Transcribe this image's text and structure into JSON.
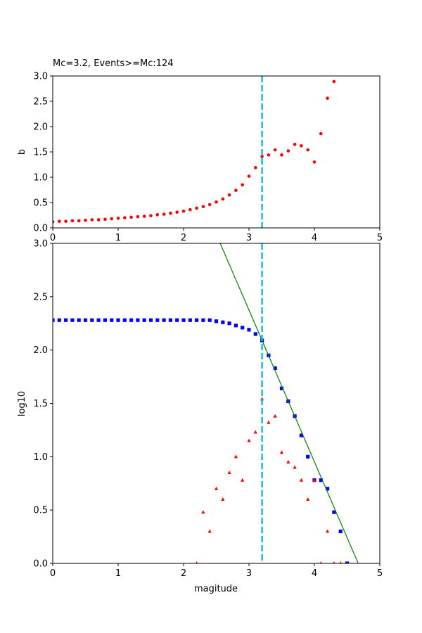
{
  "figure": {
    "title": "Mc=3.2, Events>=Mc:124"
  },
  "colors": {
    "b_points": "#ff0000",
    "cumulative": "#0000ff",
    "noncumulative": "#ff0000",
    "fit_line": "#008000",
    "mc_line": "#17becf"
  },
  "chart_data": [
    {
      "type": "scatter",
      "panel": "top",
      "title": "Mc=3.2, Events>=Mc:124",
      "xlabel": "",
      "ylabel": "b",
      "xlim": [
        0,
        5
      ],
      "ylim": [
        0,
        3
      ],
      "xticks": [
        "0",
        "1",
        "2",
        "3",
        "4",
        "5"
      ],
      "yticks": [
        "0.0",
        "0.5",
        "1.0",
        "1.5",
        "2.0",
        "2.5",
        "3.0"
      ],
      "mc": 3.2,
      "series": [
        {
          "marker": "circle",
          "x": [
            0.0,
            0.1,
            0.2,
            0.3,
            0.4,
            0.5,
            0.6,
            0.7,
            0.8,
            0.9,
            1.0,
            1.1,
            1.2,
            1.3,
            1.4,
            1.5,
            1.6,
            1.7,
            1.8,
            1.9,
            2.0,
            2.1,
            2.2,
            2.3,
            2.4,
            2.5,
            2.6,
            2.7,
            2.8,
            2.9,
            3.0,
            3.1,
            3.2,
            3.3,
            3.4,
            3.5,
            3.6,
            3.7,
            3.8,
            3.9,
            4.0,
            4.1,
            4.2,
            4.3
          ],
          "y": [
            0.12,
            0.13,
            0.13,
            0.14,
            0.14,
            0.15,
            0.16,
            0.16,
            0.17,
            0.18,
            0.19,
            0.2,
            0.21,
            0.22,
            0.23,
            0.24,
            0.26,
            0.27,
            0.29,
            0.31,
            0.33,
            0.36,
            0.39,
            0.42,
            0.46,
            0.51,
            0.57,
            0.65,
            0.74,
            0.85,
            1.02,
            1.19,
            1.41,
            1.44,
            1.54,
            1.44,
            1.52,
            1.65,
            1.62,
            1.54,
            1.3,
            1.86,
            2.56,
            2.89
          ]
        }
      ]
    },
    {
      "type": "scatter",
      "panel": "bottom",
      "xlabel": "magitude",
      "ylabel": "log10",
      "xlim": [
        0,
        5
      ],
      "ylim": [
        0,
        3
      ],
      "xticks": [
        "0",
        "1",
        "2",
        "3",
        "4",
        "5"
      ],
      "yticks": [
        "0.0",
        "0.5",
        "1.0",
        "1.5",
        "2.0",
        "2.5",
        "3.0"
      ],
      "mc": 3.2,
      "series": [
        {
          "marker": "square",
          "x": [
            0.0,
            0.1,
            0.2,
            0.3,
            0.4,
            0.5,
            0.6,
            0.7,
            0.8,
            0.9,
            1.0,
            1.1,
            1.2,
            1.3,
            1.4,
            1.5,
            1.6,
            1.7,
            1.8,
            1.9,
            2.0,
            2.1,
            2.2,
            2.3,
            2.4,
            2.5,
            2.6,
            2.7,
            2.8,
            2.9,
            3.0,
            3.1,
            3.2,
            3.3,
            3.4,
            3.5,
            3.6,
            3.7,
            3.8,
            3.9,
            4.0,
            4.1,
            4.2,
            4.3,
            4.4,
            4.5
          ],
          "y": [
            2.28,
            2.28,
            2.28,
            2.28,
            2.28,
            2.28,
            2.28,
            2.28,
            2.28,
            2.28,
            2.28,
            2.28,
            2.28,
            2.28,
            2.28,
            2.28,
            2.28,
            2.28,
            2.28,
            2.28,
            2.28,
            2.28,
            2.28,
            2.28,
            2.28,
            2.27,
            2.26,
            2.25,
            2.23,
            2.21,
            2.19,
            2.15,
            2.09,
            1.95,
            1.83,
            1.64,
            1.52,
            1.38,
            1.2,
            1.0,
            0.78,
            0.78,
            0.7,
            0.48,
            0.3,
            0.0
          ]
        },
        {
          "marker": "triangle",
          "x": [
            2.2,
            2.3,
            2.4,
            2.5,
            2.6,
            2.7,
            2.8,
            2.9,
            3.0,
            3.1,
            3.2,
            3.3,
            3.4,
            3.5,
            3.6,
            3.7,
            3.8,
            3.9,
            4.0,
            4.1,
            4.2,
            4.3,
            4.4
          ],
          "y": [
            0.0,
            0.48,
            0.3,
            0.7,
            0.6,
            0.85,
            1.0,
            0.78,
            1.15,
            1.23,
            1.54,
            1.32,
            1.38,
            1.04,
            0.95,
            0.9,
            0.78,
            0.6,
            0.78,
            0.0,
            0.3,
            0.0,
            0.0
          ]
        },
        {
          "type": "line",
          "x": [
            2.56,
            4.67
          ],
          "y": [
            3.0,
            0.0
          ]
        }
      ]
    }
  ]
}
